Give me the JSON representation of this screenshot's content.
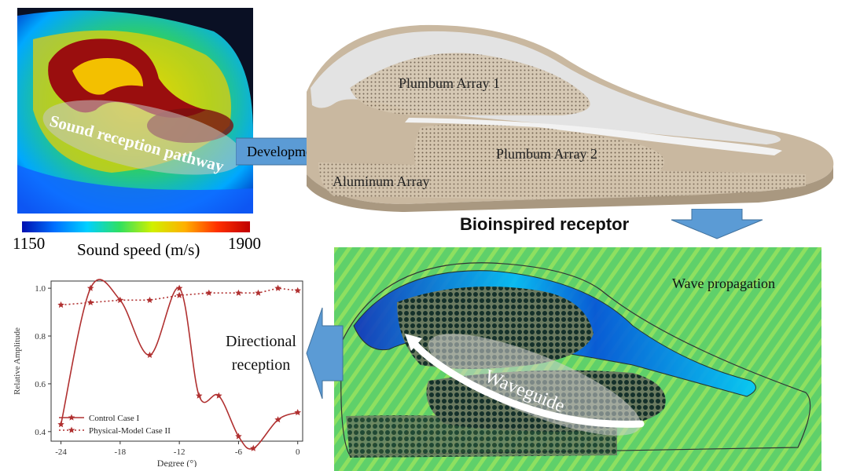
{
  "ct_panel": {
    "overlay_text": "Sound reception pathway"
  },
  "colorbar": {
    "min": "1150",
    "max": "1900",
    "label": "Sound speed (m/s)",
    "colors": [
      "#0010b0",
      "#0070ff",
      "#00d0ff",
      "#30e060",
      "#d0f000",
      "#ffb000",
      "#ff3000",
      "#c00000"
    ]
  },
  "arrows": {
    "development": "Development",
    "directional_reception": [
      "Directional",
      "reception"
    ],
    "color": "#5b9bd5"
  },
  "model": {
    "labels": {
      "plumbum_array_1": "Plumbum Array 1",
      "plumbum_array_2": "Plumbum Array 2",
      "aluminum_array": "Aluminum Array"
    },
    "title": "Bioinspired receptor"
  },
  "simulation": {
    "wave_label": "Wave propagation",
    "waveguide_label": "Waveguide"
  },
  "chart_data": {
    "type": "line",
    "xlabel": "Degree (°)",
    "ylabel": "Relative Amplitude",
    "xlim": [
      -25,
      0.5
    ],
    "ylim": [
      0.36,
      1.03
    ],
    "xticks": [
      -24,
      -18,
      -12,
      -6,
      0
    ],
    "yticks": [
      0.4,
      0.6,
      0.8,
      1.0
    ],
    "legend_position": "bottom-left",
    "series": [
      {
        "name": "Control Case I",
        "style": "solid",
        "color": "#b03030",
        "marker": "star",
        "points": [
          [
            -24,
            0.43
          ],
          [
            -21,
            1.0
          ],
          [
            -18,
            0.95
          ],
          [
            -15,
            0.72
          ],
          [
            -12,
            1.0
          ],
          [
            -10,
            0.55
          ],
          [
            -8,
            0.55
          ],
          [
            -6,
            0.38
          ],
          [
            -4.5,
            0.33
          ],
          [
            -2,
            0.45
          ],
          [
            0,
            0.48
          ]
        ]
      },
      {
        "name": "Physical-Model Case II",
        "style": "dotted",
        "color": "#b03030",
        "marker": "star",
        "points": [
          [
            -24,
            0.93
          ],
          [
            -21,
            0.94
          ],
          [
            -18,
            0.95
          ],
          [
            -15,
            0.95
          ],
          [
            -12,
            0.97
          ],
          [
            -9,
            0.98
          ],
          [
            -6,
            0.98
          ],
          [
            -4,
            0.98
          ],
          [
            -2,
            1.0
          ],
          [
            0,
            0.99
          ]
        ]
      }
    ]
  }
}
